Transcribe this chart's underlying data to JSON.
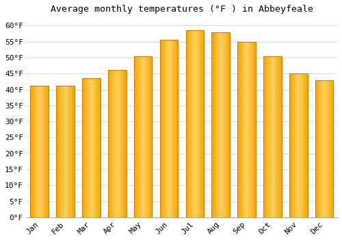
{
  "title": "Average monthly temperatures (°F ) in Abbeyfeale",
  "months": [
    "Jan",
    "Feb",
    "Mar",
    "Apr",
    "May",
    "Jun",
    "Jul",
    "Aug",
    "Sep",
    "Oct",
    "Nov",
    "Dec"
  ],
  "values": [
    41.2,
    41.2,
    43.5,
    46.2,
    50.5,
    55.5,
    58.5,
    58.0,
    55.0,
    50.5,
    45.0,
    43.0
  ],
  "bar_color_left": "#F5A500",
  "bar_color_center": "#FFD060",
  "bar_color_right": "#F5A500",
  "bar_edge_color": "#D08000",
  "ylim": [
    0,
    62
  ],
  "ytick_min": 0,
  "ytick_max": 60,
  "ytick_step": 5,
  "background_color": "#ffffff",
  "grid_color": "#e0e0e0",
  "title_fontsize": 9.5,
  "tick_fontsize": 8,
  "font_family": "monospace"
}
